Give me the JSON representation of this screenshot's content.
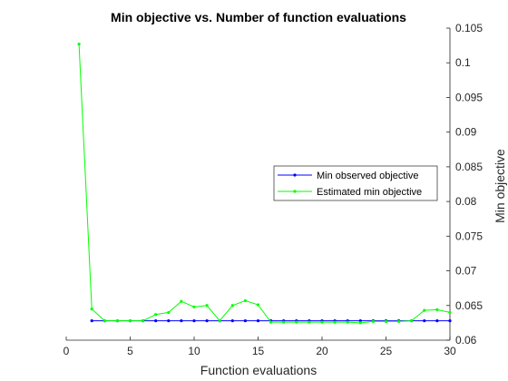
{
  "chart_data": {
    "type": "line",
    "title": "Min objective vs. Number of function evaluations",
    "xlabel": "Function evaluations",
    "ylabel": "Min objective",
    "xlim": [
      0,
      30
    ],
    "ylim": [
      0.06,
      0.105
    ],
    "x_ticks": [
      "0",
      "5",
      "10",
      "15",
      "20",
      "25",
      "30"
    ],
    "y_ticks": [
      "0.06",
      "0.065",
      "0.07",
      "0.075",
      "0.08",
      "0.085",
      "0.09",
      "0.095",
      "0.1",
      "0.105"
    ],
    "y_axis_side": "right",
    "grid": false,
    "legend_placement": "middle-right",
    "series": [
      {
        "name": "Min observed objective",
        "color": "#0000ff",
        "x": [
          2,
          3,
          4,
          5,
          6,
          7,
          8,
          9,
          10,
          11,
          12,
          13,
          14,
          15,
          16,
          17,
          18,
          19,
          20,
          21,
          22,
          23,
          24,
          25,
          26,
          27,
          28,
          29,
          30
        ],
        "values": [
          0.0628,
          0.0628,
          0.0628,
          0.0628,
          0.0628,
          0.0628,
          0.0628,
          0.0628,
          0.0628,
          0.0628,
          0.0628,
          0.0628,
          0.0628,
          0.0628,
          0.0628,
          0.0628,
          0.0628,
          0.0628,
          0.0628,
          0.0628,
          0.0628,
          0.0628,
          0.0628,
          0.0628,
          0.0628,
          0.0628,
          0.0628,
          0.0628,
          0.0628
        ]
      },
      {
        "name": "Estimated min objective",
        "color": "#00ff00",
        "x": [
          1,
          2,
          3,
          4,
          5,
          6,
          7,
          8,
          9,
          10,
          11,
          12,
          13,
          14,
          15,
          16,
          17,
          18,
          19,
          20,
          21,
          22,
          23,
          24,
          25,
          26,
          27,
          28,
          29,
          30
        ],
        "values": [
          0.1027,
          0.0645,
          0.0628,
          0.0628,
          0.0628,
          0.0628,
          0.0637,
          0.064,
          0.0656,
          0.0648,
          0.065,
          0.0628,
          0.065,
          0.0657,
          0.0651,
          0.0626,
          0.0626,
          0.0626,
          0.0626,
          0.0626,
          0.0626,
          0.0626,
          0.0625,
          0.0627,
          0.0627,
          0.0627,
          0.0628,
          0.0643,
          0.0644,
          0.064
        ]
      }
    ]
  }
}
